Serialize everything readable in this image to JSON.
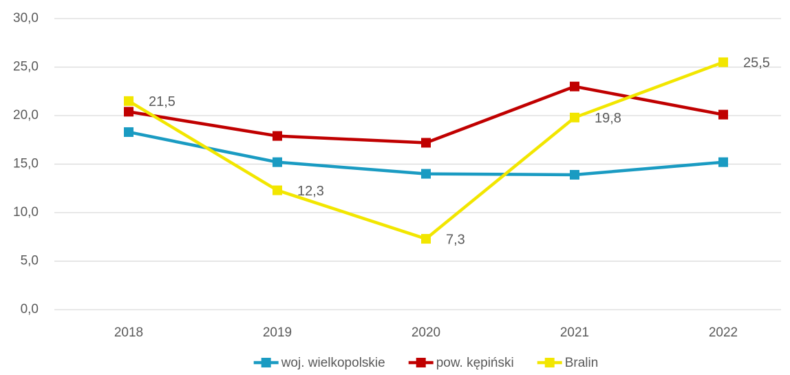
{
  "chart_data": {
    "type": "line",
    "categories": [
      "2018",
      "2019",
      "2020",
      "2021",
      "2022"
    ],
    "series": [
      {
        "name": "woj. wielkopolskie",
        "color": "#1a9bc2",
        "values": [
          18.3,
          15.2,
          14.0,
          13.9,
          15.2
        ]
      },
      {
        "name": "pow. kępiński",
        "color": "#c00000",
        "values": [
          20.4,
          17.9,
          17.2,
          23.0,
          20.1
        ]
      },
      {
        "name": "Bralin",
        "color": "#f2e600",
        "values": [
          21.5,
          12.3,
          7.3,
          19.8,
          25.5
        ],
        "value_labels": [
          "21,5",
          "12,3",
          "7,3",
          "19,8",
          "25,5"
        ]
      }
    ],
    "ylim": [
      0,
      30
    ],
    "yticks": [
      {
        "value": 0,
        "label": "0,0"
      },
      {
        "value": 5,
        "label": "5,0"
      },
      {
        "value": 10,
        "label": "10,0"
      },
      {
        "value": 15,
        "label": "15,0"
      },
      {
        "value": 20,
        "label": "20,0"
      },
      {
        "value": 25,
        "label": "25,0"
      },
      {
        "value": 30,
        "label": "30,0"
      }
    ],
    "grid": true,
    "legend": "bottom"
  }
}
